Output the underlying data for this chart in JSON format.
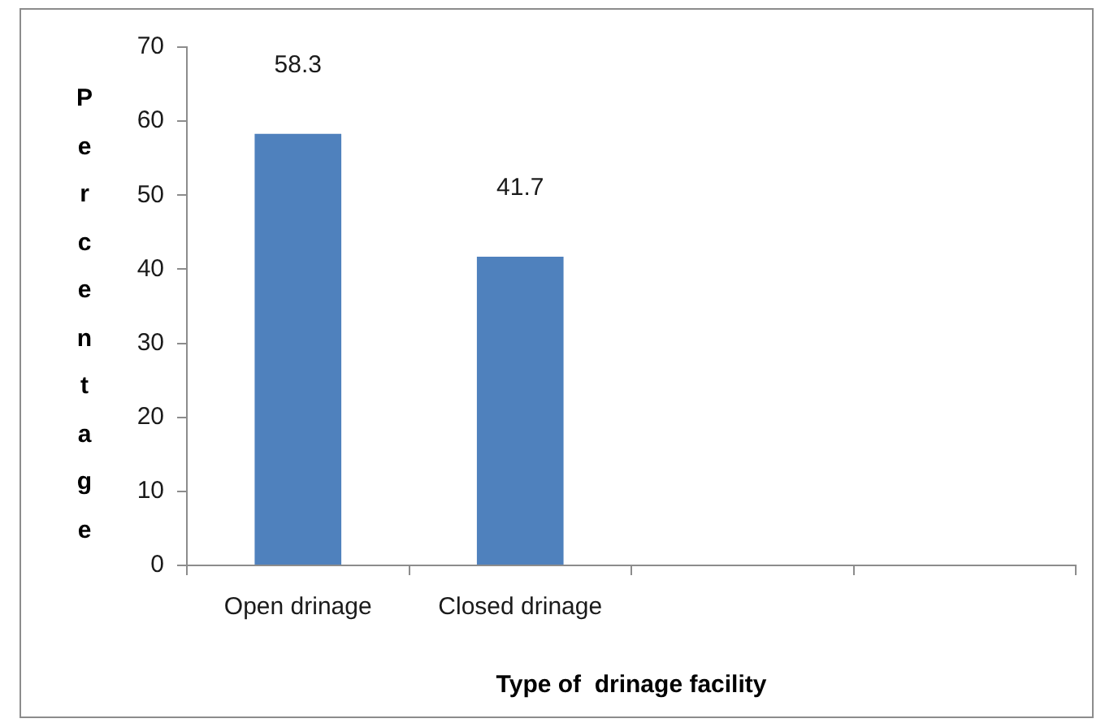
{
  "chart_data": {
    "type": "bar",
    "categories": [
      "Open drinage",
      "Closed drinage",
      null,
      null
    ],
    "values": [
      58.3,
      41.7,
      null,
      null
    ],
    "color": "#4f81bd",
    "ylim": [
      0,
      70
    ],
    "yticks": [
      0,
      10,
      20,
      30,
      40,
      50,
      60,
      70
    ],
    "xlabel": "Type of  drinage facility",
    "ylabel": "Percentage",
    "data_labels": true
  }
}
